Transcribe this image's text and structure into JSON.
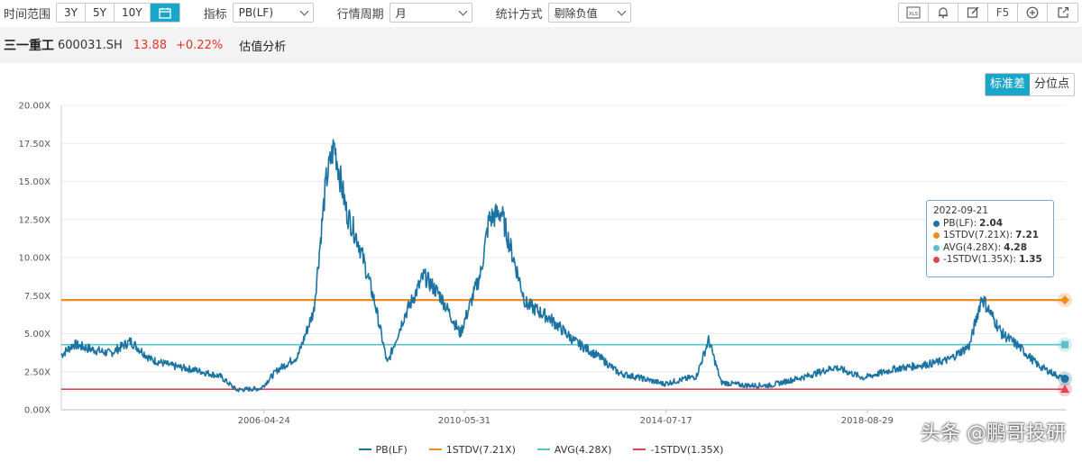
{
  "toolbar": {
    "range_label": "时间范围",
    "range_options": [
      "3Y",
      "5Y",
      "10Y"
    ],
    "indicator_label": "指标",
    "indicator_value": "PB(LF)",
    "period_label": "行情周期",
    "period_value": "月",
    "stat_label": "统计方式",
    "stat_value": "剔除负值",
    "f5_label": "F5"
  },
  "stock": {
    "name": "三一重工",
    "code": "600031.SH",
    "price": "13.88",
    "change": "+0.22%",
    "function": "估值分析"
  },
  "mode": {
    "std_label": "标准差",
    "pct_label": "分位点"
  },
  "colors": {
    "pb": "#1a73a0",
    "plus1": "#f08c1e",
    "avg": "#5bc0c8",
    "minus1": "#e0434f",
    "accent": "#1aa6c6",
    "red": "#e0342b"
  },
  "chart_data": {
    "type": "line",
    "ylim": [
      0,
      20
    ],
    "y_ticks": [
      "0.00X",
      "2.50X",
      "5.00X",
      "7.50X",
      "10.00X",
      "12.50X",
      "15.00X",
      "17.50X",
      "20.00X"
    ],
    "x_ticks": [
      "2006-04-24",
      "2010-05-31",
      "2014-07-17",
      "2018-08-29"
    ],
    "x_range": [
      "2002-03-01",
      "2022-09-21"
    ],
    "reference_lines": [
      {
        "name": "1STDV(7.21X)",
        "value": 7.21,
        "color": "#f08c1e"
      },
      {
        "name": "AVG(4.28X)",
        "value": 4.28,
        "color": "#5bc0c8"
      },
      {
        "name": "-1STDV(1.35X)",
        "value": 1.35,
        "color": "#e0434f"
      }
    ],
    "series": [
      {
        "name": "PB(LF)",
        "color": "#1a73a0",
        "points": [
          [
            "2002-03",
            3.6
          ],
          [
            "2002-06",
            4.3
          ],
          [
            "2002-10",
            4.0
          ],
          [
            "2003-03",
            3.7
          ],
          [
            "2003-08",
            4.5
          ],
          [
            "2004-01",
            3.3
          ],
          [
            "2004-06",
            2.9
          ],
          [
            "2004-12",
            2.6
          ],
          [
            "2005-06",
            2.2
          ],
          [
            "2005-10",
            1.3
          ],
          [
            "2006-04",
            1.4
          ],
          [
            "2006-08",
            2.6
          ],
          [
            "2007-01",
            3.5
          ],
          [
            "2007-05",
            6.5
          ],
          [
            "2007-08",
            15.0
          ],
          [
            "2007-10",
            17.4
          ],
          [
            "2008-01",
            13.0
          ],
          [
            "2008-04",
            11.0
          ],
          [
            "2008-08",
            7.0
          ],
          [
            "2008-11",
            3.0
          ],
          [
            "2009-03",
            6.0
          ],
          [
            "2009-08",
            8.8
          ],
          [
            "2009-12",
            7.5
          ],
          [
            "2010-05",
            5.0
          ],
          [
            "2010-10",
            9.0
          ],
          [
            "2010-12",
            12.5
          ],
          [
            "2011-03",
            13.0
          ],
          [
            "2011-06",
            10.0
          ],
          [
            "2011-09",
            7.0
          ],
          [
            "2012-03",
            6.0
          ],
          [
            "2012-09",
            4.5
          ],
          [
            "2013-03",
            3.5
          ],
          [
            "2013-08",
            2.4
          ],
          [
            "2014-01",
            2.1
          ],
          [
            "2014-07",
            1.7
          ],
          [
            "2015-03",
            2.2
          ],
          [
            "2015-06",
            4.6
          ],
          [
            "2015-09",
            1.8
          ],
          [
            "2016-03",
            1.6
          ],
          [
            "2016-09",
            1.6
          ],
          [
            "2017-06",
            2.2
          ],
          [
            "2018-01",
            2.8
          ],
          [
            "2018-08",
            2.1
          ],
          [
            "2019-04",
            2.7
          ],
          [
            "2019-12",
            3.0
          ],
          [
            "2020-05",
            3.3
          ],
          [
            "2020-10",
            4.2
          ],
          [
            "2021-01",
            7.4
          ],
          [
            "2021-06",
            5.0
          ],
          [
            "2021-10",
            4.2
          ],
          [
            "2022-03",
            2.9
          ],
          [
            "2022-09",
            2.04
          ]
        ]
      }
    ],
    "tooltip": {
      "date": "2022-09-21",
      "pb_label": "PB(LF):",
      "pb_value": "2.04",
      "plus1_label": "1STDV(7.21X):",
      "plus1_value": "7.21",
      "avg_label": "AVG(4.28X):",
      "avg_value": "4.28",
      "minus1_label": "-1STDV(1.35X):",
      "minus1_value": "1.35"
    },
    "legend": [
      "PB(LF)",
      "1STDV(7.21X)",
      "AVG(4.28X)",
      "-1STDV(1.35X)"
    ]
  },
  "watermark": "头条 @鹏哥投研"
}
